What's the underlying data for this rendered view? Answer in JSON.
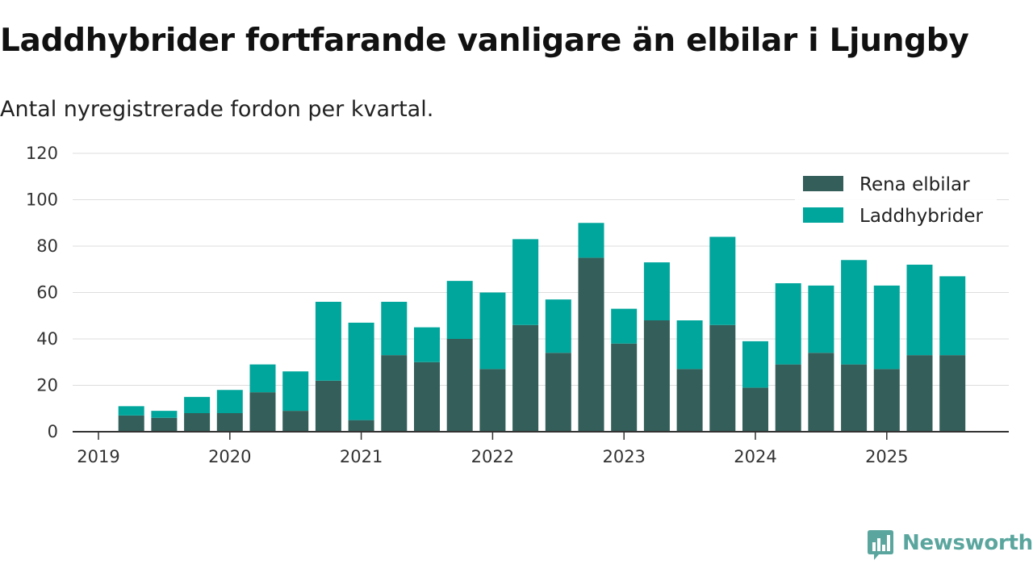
{
  "title": "Laddhybrider fortfarande vanligare än elbilar i Ljungby",
  "subtitle": "Antal nyregistrerade fordon per kvartal.",
  "brand": {
    "name": "Newsworthy",
    "color": "#5aa69e",
    "icon": "bar-chart-speech-bubble-icon"
  },
  "colors": {
    "electric": "#335e59",
    "hybrid": "#00a69c",
    "grid": "#dddddd",
    "axis": "#333333"
  },
  "chart_data": {
    "type": "bar",
    "stacked": true,
    "title": "Laddhybrider fortfarande vanligare än elbilar i Ljungby",
    "subtitle": "Antal nyregistrerade fordon per kvartal.",
    "xlabel": "",
    "ylabel": "",
    "ylim": [
      0,
      120
    ],
    "yticks": [
      0,
      20,
      40,
      60,
      80,
      100,
      120
    ],
    "xticks": [
      "2019",
      "2020",
      "2021",
      "2022",
      "2023",
      "2024",
      "2025"
    ],
    "categories": [
      "2019 Q2",
      "2019 Q3",
      "2019 Q4",
      "2020 Q1",
      "2020 Q2",
      "2020 Q3",
      "2020 Q4",
      "2021 Q1",
      "2021 Q2",
      "2021 Q3",
      "2021 Q4",
      "2022 Q1",
      "2022 Q2",
      "2022 Q3",
      "2022 Q4",
      "2023 Q1",
      "2023 Q2",
      "2023 Q3",
      "2023 Q4",
      "2024 Q1",
      "2024 Q2",
      "2024 Q3",
      "2024 Q4",
      "2025 Q1",
      "2025 Q2",
      "2025 Q3"
    ],
    "legend_position": "top-right",
    "series": [
      {
        "name": "Rena elbilar",
        "color": "#335e59",
        "values": [
          7,
          6,
          8,
          8,
          17,
          9,
          22,
          5,
          33,
          30,
          40,
          27,
          46,
          34,
          75,
          38,
          48,
          27,
          46,
          19,
          29,
          34,
          29,
          27,
          33,
          33
        ]
      },
      {
        "name": "Laddhybrider",
        "color": "#00a69c",
        "values": [
          4,
          3,
          7,
          10,
          12,
          17,
          34,
          42,
          23,
          15,
          25,
          33,
          37,
          23,
          15,
          15,
          25,
          21,
          38,
          20,
          35,
          29,
          45,
          36,
          39,
          34
        ]
      }
    ]
  }
}
